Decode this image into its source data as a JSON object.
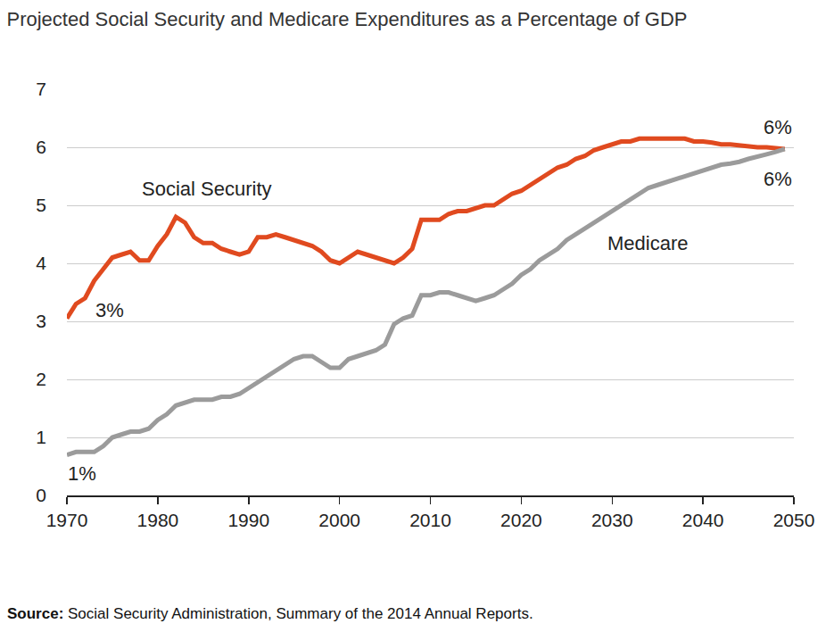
{
  "chart_data": {
    "type": "line",
    "title": "Projected Social Security and Medicare Expenditures as a Percentage of GDP",
    "x": [
      1970,
      1971,
      1972,
      1973,
      1974,
      1975,
      1976,
      1977,
      1978,
      1979,
      1980,
      1981,
      1982,
      1983,
      1984,
      1985,
      1986,
      1987,
      1988,
      1989,
      1990,
      1991,
      1992,
      1993,
      1994,
      1995,
      1996,
      1997,
      1998,
      1999,
      2000,
      2001,
      2002,
      2003,
      2004,
      2005,
      2006,
      2007,
      2008,
      2009,
      2010,
      2011,
      2012,
      2013,
      2014,
      2015,
      2016,
      2017,
      2018,
      2019,
      2020,
      2021,
      2022,
      2023,
      2024,
      2025,
      2026,
      2027,
      2028,
      2029,
      2030,
      2031,
      2032,
      2033,
      2034,
      2035,
      2036,
      2037,
      2038,
      2039,
      2040,
      2041,
      2042,
      2043,
      2044,
      2045,
      2046,
      2047,
      2048,
      2049
    ],
    "series": [
      {
        "name": "Social Security",
        "color": "#e04a1f",
        "values": [
          3.05,
          3.3,
          3.4,
          3.7,
          3.9,
          4.1,
          4.15,
          4.2,
          4.05,
          4.05,
          4.3,
          4.5,
          4.8,
          4.7,
          4.45,
          4.35,
          4.35,
          4.25,
          4.2,
          4.15,
          4.2,
          4.45,
          4.45,
          4.5,
          4.45,
          4.4,
          4.35,
          4.3,
          4.2,
          4.05,
          4.0,
          4.1,
          4.2,
          4.15,
          4.1,
          4.05,
          4.0,
          4.1,
          4.25,
          4.75,
          4.75,
          4.75,
          4.85,
          4.9,
          4.9,
          4.95,
          5.0,
          5.0,
          5.1,
          5.2,
          5.25,
          5.35,
          5.45,
          5.55,
          5.65,
          5.7,
          5.8,
          5.85,
          5.95,
          6.0,
          6.05,
          6.1,
          6.1,
          6.15,
          6.15,
          6.15,
          6.15,
          6.15,
          6.15,
          6.1,
          6.1,
          6.08,
          6.05,
          6.05,
          6.03,
          6.02,
          6.0,
          6.0,
          5.98,
          5.97
        ]
      },
      {
        "name": "Medicare",
        "color": "#9b9b9b",
        "values": [
          0.7,
          0.75,
          0.75,
          0.75,
          0.85,
          1.0,
          1.05,
          1.1,
          1.1,
          1.15,
          1.3,
          1.4,
          1.55,
          1.6,
          1.65,
          1.65,
          1.65,
          1.7,
          1.7,
          1.75,
          1.85,
          1.95,
          2.05,
          2.15,
          2.25,
          2.35,
          2.4,
          2.4,
          2.3,
          2.2,
          2.2,
          2.35,
          2.4,
          2.45,
          2.5,
          2.6,
          2.95,
          3.05,
          3.1,
          3.45,
          3.45,
          3.5,
          3.5,
          3.45,
          3.4,
          3.35,
          3.4,
          3.45,
          3.55,
          3.65,
          3.8,
          3.9,
          4.05,
          4.15,
          4.25,
          4.4,
          4.5,
          4.6,
          4.7,
          4.8,
          4.9,
          5.0,
          5.1,
          5.2,
          5.3,
          5.35,
          5.4,
          5.45,
          5.5,
          5.55,
          5.6,
          5.65,
          5.7,
          5.72,
          5.75,
          5.8,
          5.85,
          5.88,
          5.92,
          5.97
        ]
      }
    ],
    "xlim": [
      1970,
      2050
    ],
    "xticks": [
      1970,
      1980,
      1990,
      2000,
      2010,
      2020,
      2030,
      2040,
      2050
    ],
    "ylim": [
      0,
      7
    ],
    "yticks": [
      0,
      1,
      2,
      3,
      4,
      5,
      6,
      7
    ],
    "grid": true,
    "annotations": [
      {
        "text": "Social Security",
        "x": 1985.4,
        "y": 5.29
      },
      {
        "text": "Medicare",
        "x": 2033.9,
        "y": 4.34
      },
      {
        "text": "3%",
        "x": 1974.7,
        "y": 3.2
      },
      {
        "text": "1%",
        "x": 1971.7,
        "y": 0.38
      },
      {
        "text": "6%",
        "x": 2048.2,
        "y": 6.34
      },
      {
        "text": "6%",
        "x": 2048.2,
        "y": 5.46
      }
    ],
    "source": {
      "label": "Source:",
      "text": "Social Security Administration, Summary of the 2014 Annual Reports."
    }
  }
}
